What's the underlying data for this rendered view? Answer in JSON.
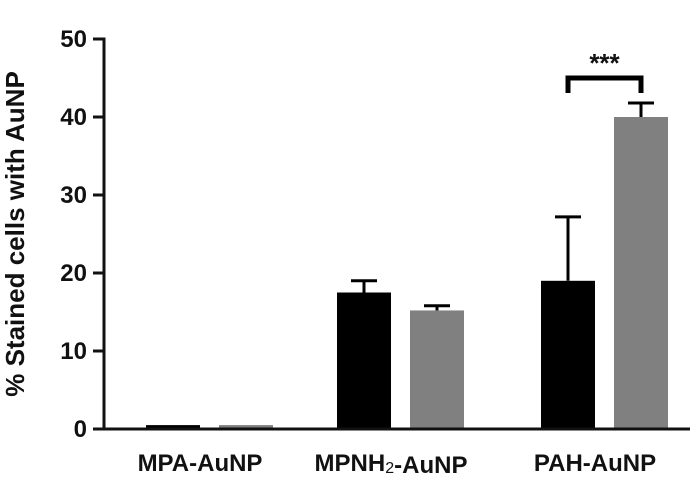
{
  "chart_data": {
    "type": "bar",
    "title": "",
    "xlabel": "",
    "ylabel": "% Stained cells with AuNP",
    "ylim": [
      0,
      50
    ],
    "yticks": [
      0,
      10,
      20,
      30,
      40,
      50
    ],
    "grid": false,
    "legend": "none",
    "categories": [
      {
        "parts": [
          {
            "text": "MPA-AuNP",
            "sub": false
          }
        ]
      },
      {
        "parts": [
          {
            "text": "MPNH",
            "sub": false
          },
          {
            "text": "2",
            "sub": true
          },
          {
            "text": "-AuNP",
            "sub": false
          }
        ]
      },
      {
        "parts": [
          {
            "text": "PAH-AuNP",
            "sub": false
          }
        ]
      }
    ],
    "series": [
      {
        "color": "#000000",
        "values": [
          0.5,
          17.5,
          19.0
        ],
        "errors": [
          0.0,
          1.5,
          8.2
        ]
      },
      {
        "color": "#808080",
        "values": [
          0.5,
          15.2,
          40.0
        ],
        "errors": [
          0.0,
          0.6,
          1.8
        ]
      }
    ],
    "annotations": [
      {
        "text": "***",
        "category_index": 2,
        "bracket_y": 45.0
      }
    ]
  }
}
